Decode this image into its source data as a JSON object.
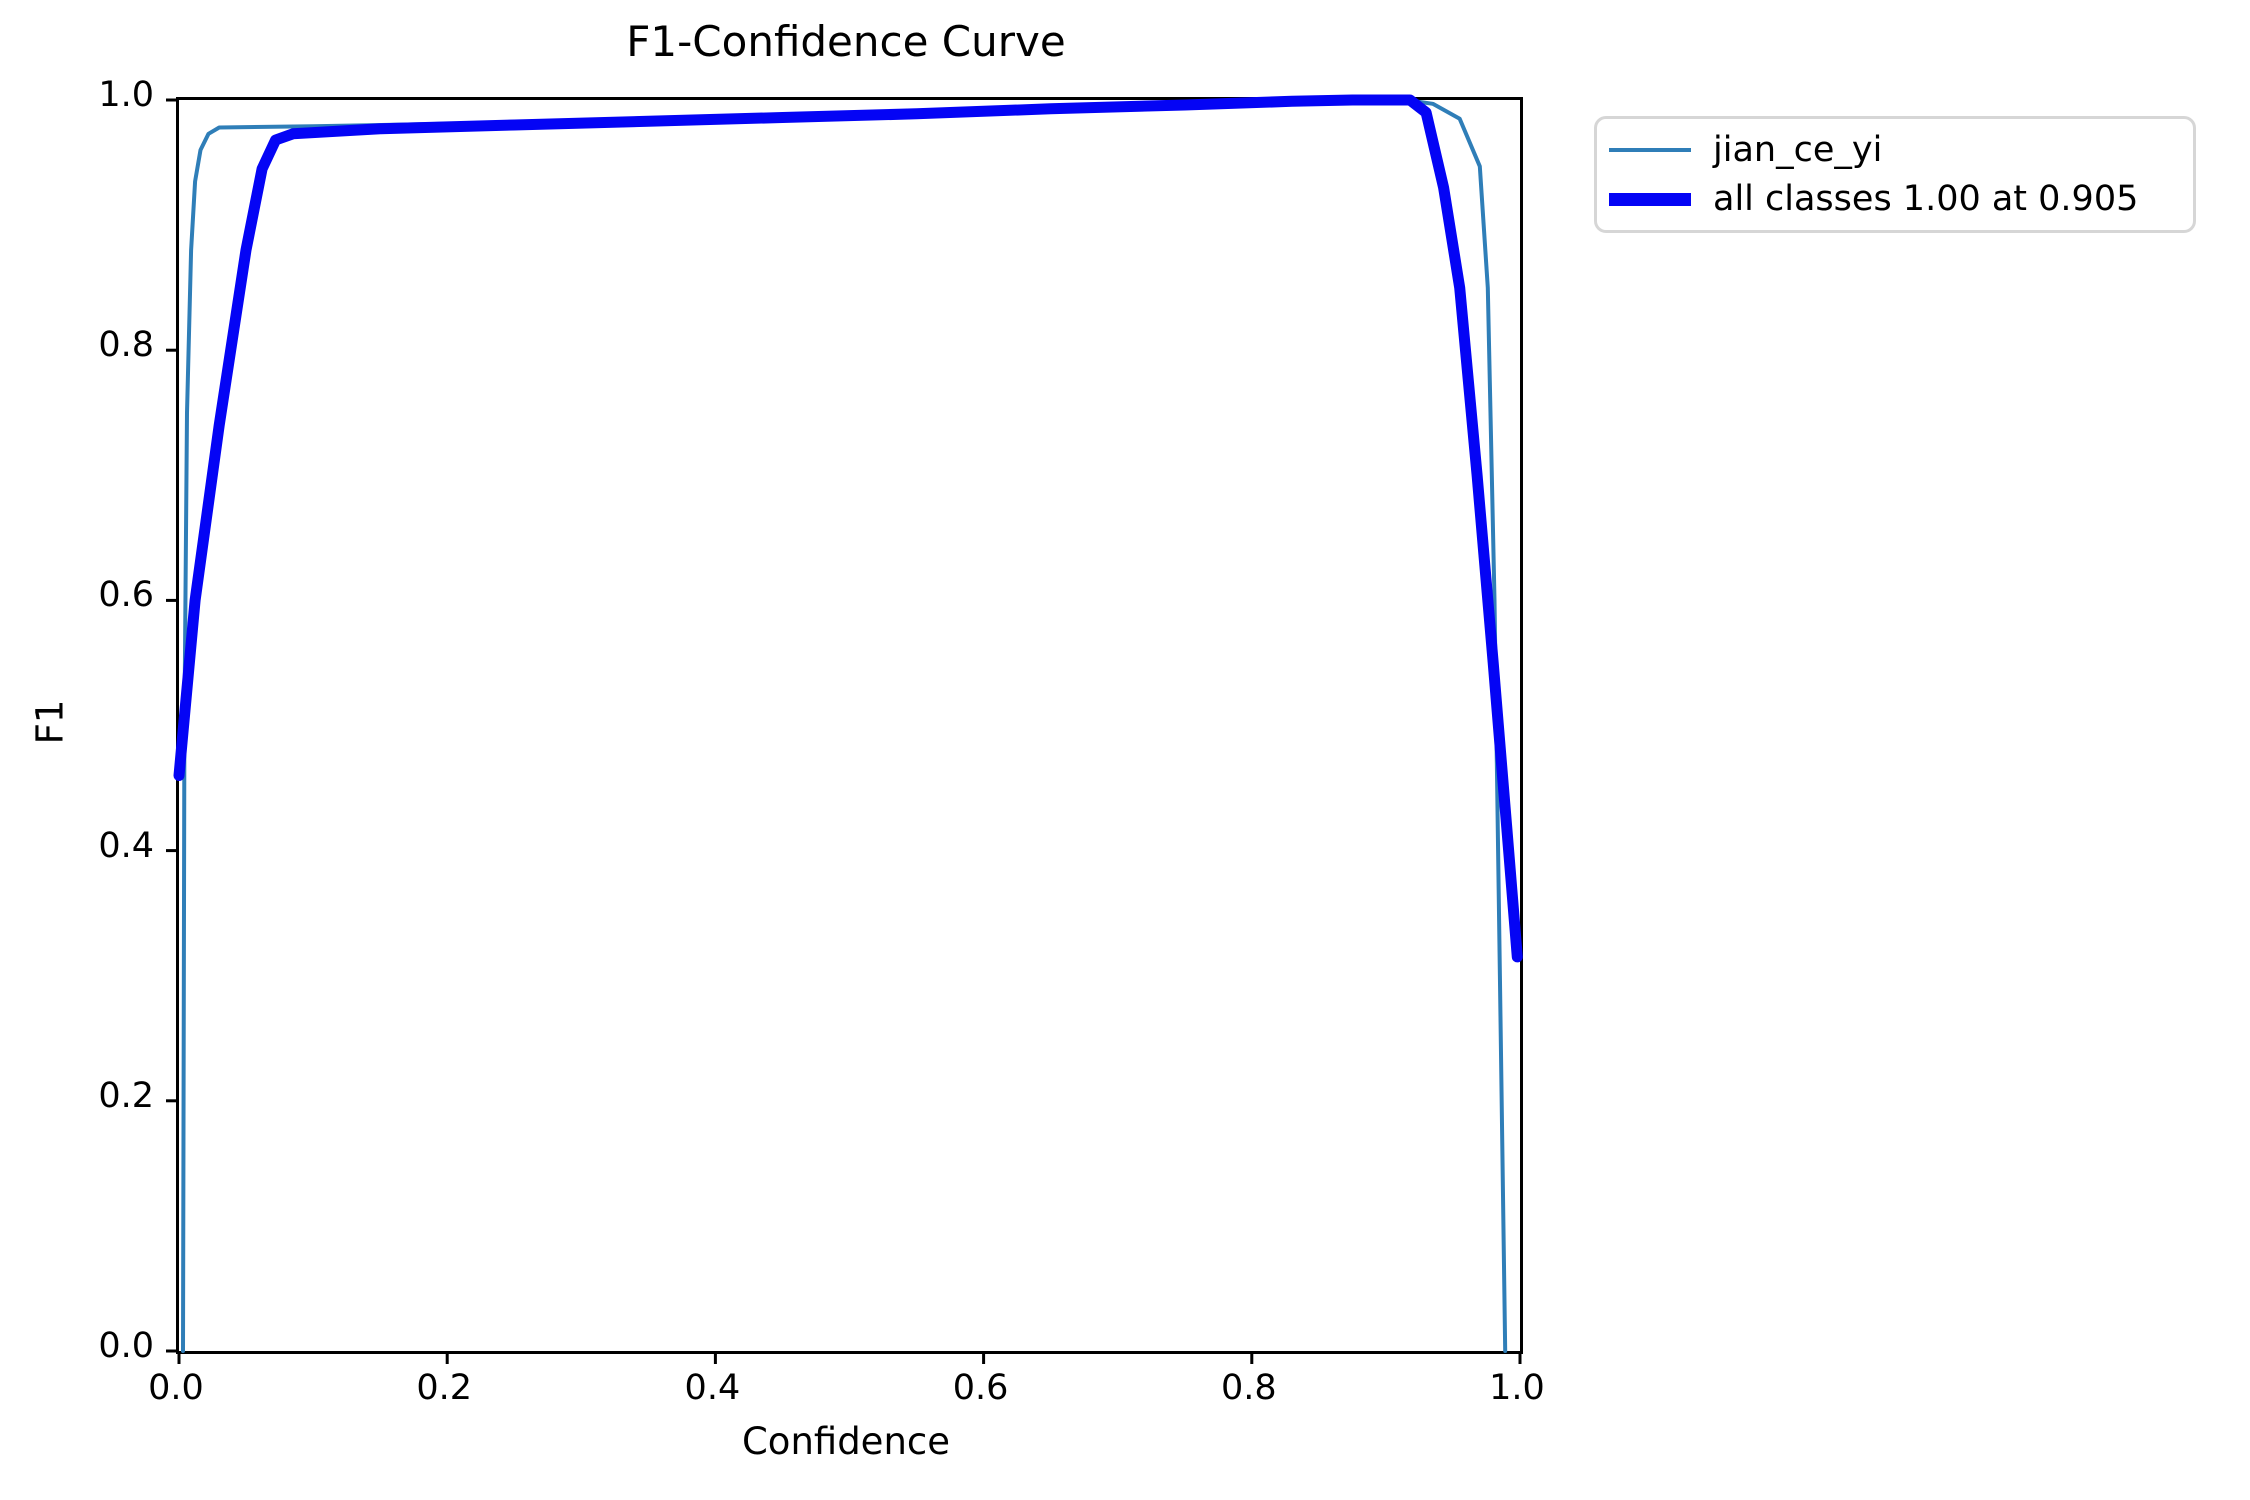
{
  "chart_data": {
    "type": "line",
    "title": "F1-Confidence Curve",
    "xlabel": "Confidence",
    "ylabel": "F1",
    "xlim": [
      0.0,
      1.0
    ],
    "ylim": [
      0.0,
      1.0
    ],
    "x_ticks": [
      "0.0",
      "0.2",
      "0.4",
      "0.6",
      "0.8",
      "1.0"
    ],
    "y_ticks": [
      "0.0",
      "0.2",
      "0.4",
      "0.6",
      "0.8",
      "1.0"
    ],
    "grid": false,
    "background_color": "#ffffff",
    "spine_color": "#000000",
    "legend_position": "outside-upper-right",
    "best_f1": {
      "value": 1.0,
      "at_confidence": 0.905
    },
    "series": [
      {
        "name": "jian_ce_yi",
        "color": "#2f7eb8",
        "linewidth": 4,
        "points": [
          [
            0.003,
            0.0
          ],
          [
            0.004,
            0.5
          ],
          [
            0.006,
            0.75
          ],
          [
            0.009,
            0.88
          ],
          [
            0.012,
            0.935
          ],
          [
            0.016,
            0.96
          ],
          [
            0.022,
            0.973
          ],
          [
            0.03,
            0.978
          ],
          [
            0.1,
            0.979
          ],
          [
            0.2,
            0.981
          ],
          [
            0.35,
            0.984
          ],
          [
            0.5,
            0.988
          ],
          [
            0.65,
            0.992
          ],
          [
            0.8,
            0.997
          ],
          [
            0.875,
            1.0
          ],
          [
            0.915,
            1.0
          ],
          [
            0.935,
            0.997
          ],
          [
            0.955,
            0.985
          ],
          [
            0.97,
            0.947
          ],
          [
            0.976,
            0.85
          ],
          [
            0.981,
            0.6
          ],
          [
            0.985,
            0.3
          ],
          [
            0.989,
            0.0
          ]
        ]
      },
      {
        "name": "all classes 1.00 at 0.905",
        "color": "#0404f5",
        "linewidth": 11,
        "points": [
          [
            0.0,
            0.46
          ],
          [
            0.012,
            0.6
          ],
          [
            0.03,
            0.74
          ],
          [
            0.05,
            0.88
          ],
          [
            0.062,
            0.945
          ],
          [
            0.072,
            0.968
          ],
          [
            0.085,
            0.973
          ],
          [
            0.15,
            0.977
          ],
          [
            0.25,
            0.98
          ],
          [
            0.35,
            0.983
          ],
          [
            0.45,
            0.986
          ],
          [
            0.55,
            0.989
          ],
          [
            0.65,
            0.993
          ],
          [
            0.75,
            0.996
          ],
          [
            0.83,
            0.999
          ],
          [
            0.875,
            1.0
          ],
          [
            0.918,
            1.0
          ],
          [
            0.93,
            0.99
          ],
          [
            0.943,
            0.93
          ],
          [
            0.955,
            0.85
          ],
          [
            0.968,
            0.7
          ],
          [
            0.98,
            0.55
          ],
          [
            0.99,
            0.42
          ],
          [
            0.998,
            0.315
          ]
        ]
      }
    ]
  },
  "legend": {
    "entries": [
      {
        "label": "jian_ce_yi",
        "color": "#2f7eb8",
        "sample_thickness": 4
      },
      {
        "label": "all classes 1.00 at 0.905",
        "color": "#0404f5",
        "sample_thickness": 13
      }
    ]
  }
}
